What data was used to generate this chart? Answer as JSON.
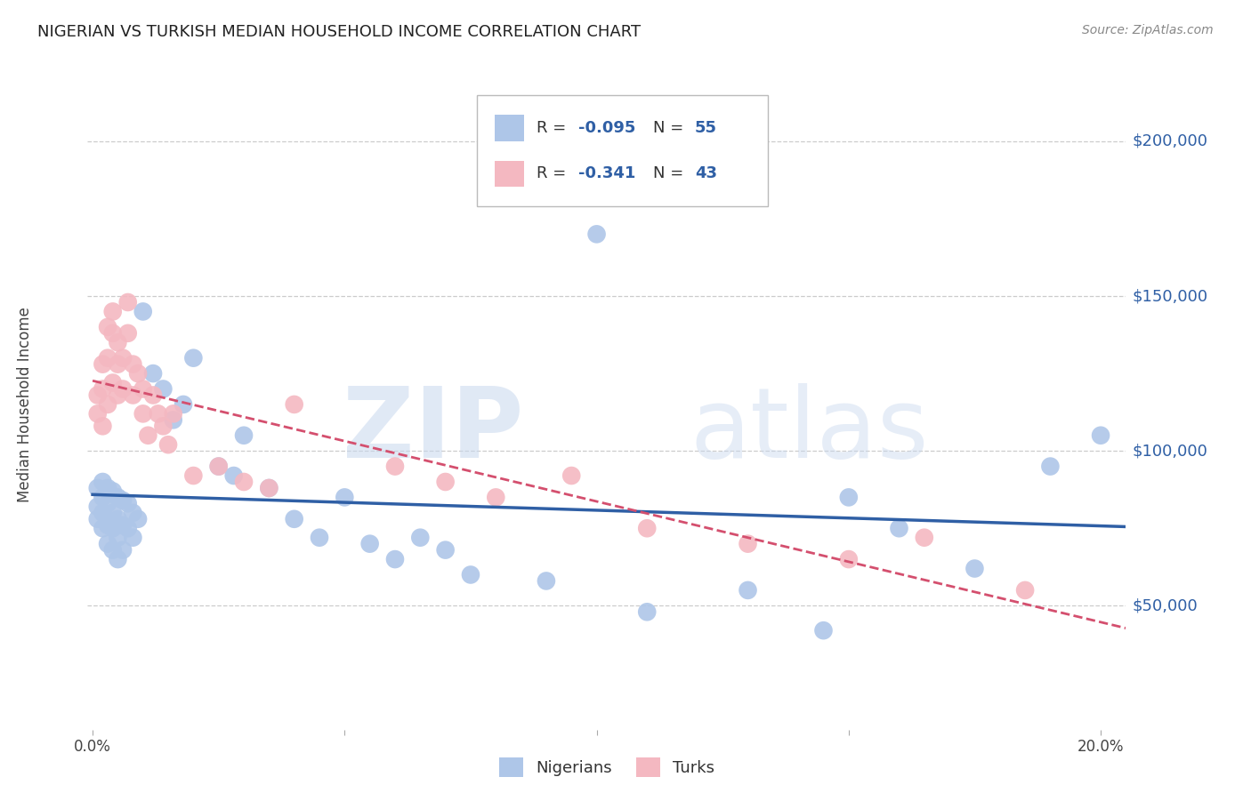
{
  "title": "NIGERIAN VS TURKISH MEDIAN HOUSEHOLD INCOME CORRELATION CHART",
  "source": "Source: ZipAtlas.com",
  "ylabel": "Median Household Income",
  "xlim": [
    -0.001,
    0.205
  ],
  "ylim": [
    10000,
    220000
  ],
  "bg_color": "#ffffff",
  "grid_color": "#cccccc",
  "watermark_zip": "ZIP",
  "watermark_atlas": "atlas",
  "blue_color": "#aec6e8",
  "pink_color": "#f4b8c1",
  "blue_line_color": "#2f5fa5",
  "pink_line_color": "#d44f6e",
  "legend_label1": "Nigerians",
  "legend_label2": "Turks",
  "nigerian_x": [
    0.001,
    0.001,
    0.001,
    0.002,
    0.002,
    0.002,
    0.002,
    0.003,
    0.003,
    0.003,
    0.003,
    0.004,
    0.004,
    0.004,
    0.004,
    0.005,
    0.005,
    0.005,
    0.005,
    0.006,
    0.006,
    0.006,
    0.007,
    0.007,
    0.008,
    0.008,
    0.009,
    0.01,
    0.012,
    0.014,
    0.016,
    0.018,
    0.02,
    0.025,
    0.028,
    0.03,
    0.035,
    0.04,
    0.045,
    0.05,
    0.055,
    0.06,
    0.065,
    0.07,
    0.075,
    0.09,
    0.1,
    0.11,
    0.13,
    0.145,
    0.15,
    0.16,
    0.175,
    0.19,
    0.2
  ],
  "nigerian_y": [
    88000,
    82000,
    78000,
    90000,
    85000,
    80000,
    75000,
    88000,
    83000,
    76000,
    70000,
    87000,
    80000,
    75000,
    68000,
    85000,
    78000,
    72000,
    65000,
    84000,
    76000,
    68000,
    83000,
    75000,
    80000,
    72000,
    78000,
    145000,
    125000,
    120000,
    110000,
    115000,
    130000,
    95000,
    92000,
    105000,
    88000,
    78000,
    72000,
    85000,
    70000,
    65000,
    72000,
    68000,
    60000,
    58000,
    170000,
    48000,
    55000,
    42000,
    85000,
    75000,
    62000,
    95000,
    105000
  ],
  "turkish_x": [
    0.001,
    0.001,
    0.002,
    0.002,
    0.002,
    0.003,
    0.003,
    0.003,
    0.004,
    0.004,
    0.004,
    0.005,
    0.005,
    0.005,
    0.006,
    0.006,
    0.007,
    0.007,
    0.008,
    0.008,
    0.009,
    0.01,
    0.01,
    0.011,
    0.012,
    0.013,
    0.014,
    0.015,
    0.016,
    0.02,
    0.025,
    0.03,
    0.035,
    0.04,
    0.06,
    0.07,
    0.08,
    0.095,
    0.11,
    0.13,
    0.15,
    0.165,
    0.185
  ],
  "turkish_y": [
    118000,
    112000,
    128000,
    120000,
    108000,
    140000,
    130000,
    115000,
    145000,
    138000,
    122000,
    135000,
    128000,
    118000,
    130000,
    120000,
    148000,
    138000,
    128000,
    118000,
    125000,
    120000,
    112000,
    105000,
    118000,
    112000,
    108000,
    102000,
    112000,
    92000,
    95000,
    90000,
    88000,
    115000,
    95000,
    90000,
    85000,
    92000,
    75000,
    70000,
    65000,
    72000,
    55000
  ]
}
